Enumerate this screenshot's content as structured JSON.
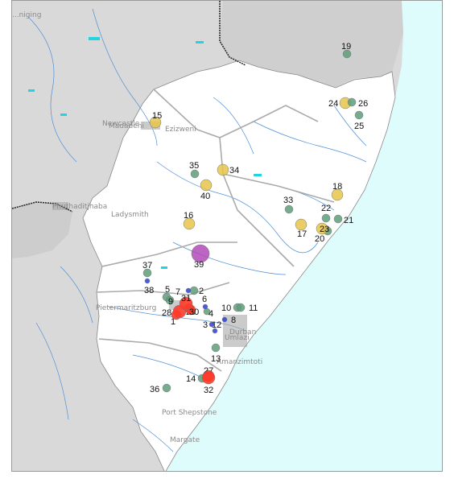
{
  "places": [
    {
      "name": "...niging"
    },
    {
      "name": "Newcastle"
    },
    {
      "name": "Madadeni"
    },
    {
      "name": "Ezizweni"
    },
    {
      "name": "Phuthaditjhaba"
    },
    {
      "name": "Ladysmith"
    },
    {
      "name": "Pietermaritzburg"
    },
    {
      "name": "Durban"
    },
    {
      "name": "Umlazi"
    },
    {
      "name": "Amanzimtoti"
    },
    {
      "name": "Port Shepstone"
    },
    {
      "name": "Margate"
    }
  ],
  "colors": {
    "yellow": "#e8c44a",
    "green": "#5d9e7a",
    "red": "#ff3b2a",
    "purple": "#b04ab8",
    "blue": "#2b3fd4",
    "sea": "#dffcfd",
    "land_out": "#d9d9d9",
    "province": "#ffffff"
  },
  "markers": [
    {
      "label": "1",
      "color": "red"
    },
    {
      "label": "2",
      "color": "green"
    },
    {
      "label": "3",
      "color": "blue"
    },
    {
      "label": "4",
      "color": "green"
    },
    {
      "label": "5",
      "color": "green"
    },
    {
      "label": "6",
      "color": "blue"
    },
    {
      "label": "7",
      "color": "blue"
    },
    {
      "label": "8",
      "color": "blue"
    },
    {
      "label": "9",
      "color": "green"
    },
    {
      "label": "10",
      "color": "green"
    },
    {
      "label": "11",
      "color": "green"
    },
    {
      "label": "12",
      "color": "blue"
    },
    {
      "label": "13",
      "color": "green"
    },
    {
      "label": "14",
      "color": "green"
    },
    {
      "label": "15",
      "color": "yellow"
    },
    {
      "label": "16",
      "color": "yellow"
    },
    {
      "label": "17",
      "color": "yellow"
    },
    {
      "label": "18",
      "color": "yellow"
    },
    {
      "label": "19",
      "color": "green"
    },
    {
      "label": "20",
      "color": "green"
    },
    {
      "label": "21",
      "color": "green"
    },
    {
      "label": "22",
      "color": "green"
    },
    {
      "label": "23",
      "color": "yellow"
    },
    {
      "label": "24",
      "color": "yellow"
    },
    {
      "label": "25",
      "color": "green"
    },
    {
      "label": "26",
      "color": "green"
    },
    {
      "label": "27",
      "color": "red"
    },
    {
      "label": "28",
      "color": "red"
    },
    {
      "label": "29",
      "color": "red"
    },
    {
      "label": "30",
      "color": "red"
    },
    {
      "label": "31",
      "color": "red"
    },
    {
      "label": "32",
      "color": "red"
    },
    {
      "label": "33",
      "color": "green"
    },
    {
      "label": "34",
      "color": "yellow"
    },
    {
      "label": "35",
      "color": "green"
    },
    {
      "label": "36",
      "color": "green"
    },
    {
      "label": "37",
      "color": "green"
    },
    {
      "label": "38",
      "color": "blue"
    },
    {
      "label": "39",
      "color": "purple"
    },
    {
      "label": "40",
      "color": "yellow"
    }
  ]
}
